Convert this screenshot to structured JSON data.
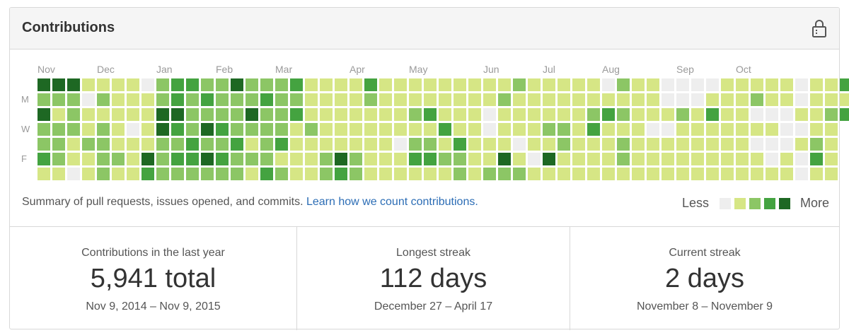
{
  "header": {
    "title": "Contributions",
    "lock_icon": "lock-icon"
  },
  "colors": {
    "level0": "#eeeeee",
    "level1": "#d6e685",
    "level2": "#8cc665",
    "level3": "#44a340",
    "level4": "#1e6823"
  },
  "calendar": {
    "months": [
      "Nov",
      "Dec",
      "Jan",
      "Feb",
      "Mar",
      "Apr",
      "May",
      "Jun",
      "Jul",
      "Aug",
      "Sep",
      "Oct"
    ],
    "month_week_index": [
      0,
      4,
      8,
      12,
      16,
      21,
      25,
      30,
      34,
      38,
      43,
      47
    ],
    "day_labels": [
      {
        "row": 1,
        "text": "M"
      },
      {
        "row": 3,
        "text": "W"
      },
      {
        "row": 5,
        "text": "F"
      }
    ],
    "weeks": [
      [
        4,
        2,
        4,
        2,
        2,
        3,
        1
      ],
      [
        4,
        2,
        1,
        2,
        2,
        2,
        1
      ],
      [
        4,
        2,
        2,
        2,
        1,
        1,
        0
      ],
      [
        1,
        0,
        1,
        1,
        2,
        1,
        1
      ],
      [
        1,
        2,
        1,
        2,
        2,
        2,
        2
      ],
      [
        1,
        1,
        1,
        1,
        1,
        2,
        1
      ],
      [
        1,
        1,
        1,
        0,
        1,
        1,
        1
      ],
      [
        0,
        1,
        1,
        1,
        1,
        4,
        3
      ],
      [
        2,
        2,
        4,
        4,
        2,
        2,
        2
      ],
      [
        3,
        3,
        4,
        3,
        2,
        3,
        2
      ],
      [
        3,
        2,
        2,
        2,
        3,
        3,
        2
      ],
      [
        2,
        3,
        2,
        4,
        2,
        4,
        2
      ],
      [
        2,
        2,
        2,
        3,
        2,
        3,
        2
      ],
      [
        4,
        2,
        2,
        2,
        3,
        2,
        2
      ],
      [
        2,
        2,
        4,
        2,
        1,
        2,
        1
      ],
      [
        2,
        3,
        2,
        2,
        2,
        2,
        3
      ],
      [
        2,
        2,
        2,
        2,
        3,
        1,
        2
      ],
      [
        3,
        2,
        3,
        1,
        1,
        1,
        1
      ],
      [
        1,
        1,
        1,
        2,
        1,
        1,
        1
      ],
      [
        1,
        1,
        1,
        1,
        1,
        2,
        2
      ],
      [
        1,
        1,
        1,
        1,
        1,
        4,
        3
      ],
      [
        1,
        1,
        1,
        1,
        1,
        2,
        2
      ],
      [
        3,
        2,
        1,
        1,
        1,
        1,
        1
      ],
      [
        1,
        1,
        1,
        1,
        1,
        1,
        1
      ],
      [
        1,
        1,
        1,
        1,
        0,
        1,
        1
      ],
      [
        1,
        1,
        2,
        1,
        2,
        3,
        1
      ],
      [
        1,
        1,
        3,
        1,
        2,
        3,
        1
      ],
      [
        1,
        1,
        1,
        3,
        1,
        2,
        1
      ],
      [
        1,
        1,
        1,
        1,
        3,
        2,
        2
      ],
      [
        1,
        1,
        1,
        1,
        1,
        1,
        1
      ],
      [
        1,
        1,
        0,
        0,
        1,
        1,
        2
      ],
      [
        1,
        2,
        1,
        1,
        1,
        4,
        2
      ],
      [
        2,
        1,
        1,
        1,
        0,
        1,
        2
      ],
      [
        1,
        1,
        1,
        1,
        1,
        0,
        1
      ],
      [
        1,
        1,
        1,
        2,
        1,
        4,
        1
      ],
      [
        1,
        1,
        1,
        2,
        2,
        1,
        1
      ],
      [
        1,
        1,
        1,
        1,
        1,
        1,
        1
      ],
      [
        1,
        1,
        2,
        3,
        1,
        1,
        1
      ],
      [
        0,
        1,
        3,
        1,
        1,
        1,
        1
      ],
      [
        2,
        1,
        2,
        1,
        2,
        2,
        1
      ],
      [
        1,
        1,
        1,
        1,
        1,
        1,
        1
      ],
      [
        1,
        1,
        1,
        0,
        1,
        1,
        1
      ],
      [
        0,
        0,
        1,
        0,
        1,
        1,
        1
      ],
      [
        0,
        0,
        2,
        1,
        1,
        1,
        1
      ],
      [
        0,
        0,
        1,
        1,
        1,
        1,
        1
      ],
      [
        0,
        1,
        3,
        1,
        1,
        1,
        1
      ],
      [
        1,
        1,
        1,
        1,
        1,
        1,
        1
      ],
      [
        1,
        1,
        1,
        1,
        1,
        1,
        1
      ],
      [
        1,
        2,
        0,
        1,
        0,
        1,
        1
      ],
      [
        1,
        1,
        0,
        1,
        0,
        0,
        1
      ],
      [
        1,
        1,
        0,
        0,
        0,
        1,
        1
      ],
      [
        0,
        0,
        1,
        0,
        1,
        0,
        0
      ],
      [
        1,
        1,
        1,
        1,
        2,
        3,
        1
      ],
      [
        1,
        1,
        2,
        1,
        1,
        1,
        1
      ],
      [
        3,
        1,
        3
      ]
    ]
  },
  "summary": {
    "text": "Summary of pull requests, issues opened, and commits.",
    "link": "Learn how we count contributions."
  },
  "legend": {
    "less": "Less",
    "more": "More"
  },
  "stats": [
    {
      "label": "Contributions in the last year",
      "value": "5,941 total",
      "range": "Nov 9, 2014 – Nov 9, 2015"
    },
    {
      "label": "Longest streak",
      "value": "112 days",
      "range": "December 27 – April 17"
    },
    {
      "label": "Current streak",
      "value": "2 days",
      "range": "November 8 – November 9"
    }
  ]
}
